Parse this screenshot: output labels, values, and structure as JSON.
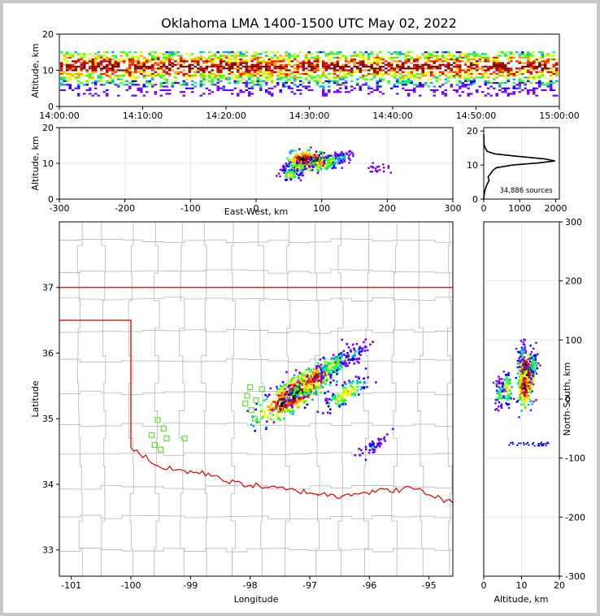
{
  "title": "Oklahoma LMA 1400-1500 UTC May 02, 2022",
  "colors": {
    "density": [
      "#7000ff",
      "#0000ff",
      "#00a0ff",
      "#00ff60",
      "#40ff00",
      "#c8ff00",
      "#ffff00",
      "#ffa000",
      "#ff2000",
      "#c00000",
      "#800000",
      "#000000",
      "#606060",
      "#c0c0c0",
      "#ffffff"
    ],
    "state_border": "#e00000",
    "county_lines": "#bdbdbd",
    "stations": "#66e033"
  },
  "chart_data": [
    {
      "name": "time_height",
      "type": "heatmap",
      "xlabel": "",
      "ylabel": "Altitude, km",
      "xlim": [
        "14:00:00",
        "15:00:00"
      ],
      "ylim": [
        0,
        20
      ],
      "xticks": [
        "14:00:00",
        "14:10:00",
        "14:20:00",
        "14:30:00",
        "14:40:00",
        "14:50:00",
        "15:00:00"
      ],
      "yticks": [
        "0",
        "10",
        "20"
      ],
      "source_band_km": [
        3,
        15
      ],
      "peak_altitude_km": 11
    },
    {
      "name": "ew_height",
      "type": "heatmap",
      "xlabel": "East-West, km",
      "ylabel": "Altitude, km",
      "xlim": [
        -300,
        300
      ],
      "ylim": [
        0,
        20
      ],
      "xticks": [
        "-300",
        "-200",
        "-100",
        "0",
        "100",
        "200",
        "300"
      ],
      "yticks": [
        "0",
        "10",
        "20"
      ],
      "cells": [
        {
          "x": 80,
          "y": 11,
          "level": 1.0
        },
        {
          "x": 90,
          "y": 11,
          "level": 0.9
        },
        {
          "x": 70,
          "y": 11.5,
          "level": 0.85
        },
        {
          "x": 100,
          "y": 10.5,
          "level": 0.6
        },
        {
          "x": 60,
          "y": 9,
          "level": 0.45
        },
        {
          "x": 50,
          "y": 7,
          "level": 0.45
        },
        {
          "x": 115,
          "y": 11,
          "level": 0.4
        },
        {
          "x": 130,
          "y": 12,
          "level": 0.25
        },
        {
          "x": 185,
          "y": 9,
          "level": 0.12
        }
      ]
    },
    {
      "name": "altitude_histogram",
      "type": "line",
      "xlim": [
        0,
        2100
      ],
      "ylim": [
        0,
        21
      ],
      "xticks": [
        "0",
        "1000",
        "2000"
      ],
      "yticks": [
        "0",
        "10",
        "20"
      ],
      "x": [
        0,
        20,
        60,
        100,
        150,
        120,
        260,
        350,
        800,
        1500,
        1980,
        1700,
        900,
        300,
        100,
        40,
        10,
        0
      ],
      "y": [
        0,
        2,
        3.5,
        4.5,
        5.5,
        6.5,
        8.5,
        9.2,
        10,
        10.6,
        11.2,
        11.8,
        12.6,
        13.3,
        14,
        15,
        16,
        19
      ],
      "annotation": "34,886 sources"
    },
    {
      "name": "plan_view",
      "type": "heatmap",
      "xlabel": "Longitude",
      "ylabel": "Latitude",
      "xlim": [
        -101.2,
        -94.6
      ],
      "ylim": [
        32.6,
        38.0
      ],
      "xticks": [
        "-101",
        "-100",
        "-99",
        "-98",
        "-97",
        "-96",
        "-95"
      ],
      "yticks": [
        "33",
        "34",
        "35",
        "36",
        "37"
      ],
      "cells": [
        {
          "lon": -97.1,
          "lat": 35.5,
          "level": 1.0
        },
        {
          "lon": -97.35,
          "lat": 35.35,
          "level": 0.95
        },
        {
          "lon": -96.9,
          "lat": 35.65,
          "level": 0.7
        },
        {
          "lon": -96.6,
          "lat": 35.85,
          "level": 0.4
        },
        {
          "lon": -96.4,
          "lat": 35.4,
          "level": 0.5
        },
        {
          "lon": -96.25,
          "lat": 36.0,
          "level": 0.2
        },
        {
          "lon": -95.95,
          "lat": 34.6,
          "level": 0.15
        }
      ],
      "stations": [
        {
          "lon": -99.55,
          "lat": 34.98
        },
        {
          "lon": -99.45,
          "lat": 34.85
        },
        {
          "lon": -99.65,
          "lat": 34.75
        },
        {
          "lon": -99.4,
          "lat": 34.7
        },
        {
          "lon": -99.6,
          "lat": 34.6
        },
        {
          "lon": -99.5,
          "lat": 34.53
        },
        {
          "lon": -99.1,
          "lat": 34.7
        },
        {
          "lon": -98.0,
          "lat": 35.48
        },
        {
          "lon": -98.05,
          "lat": 35.35
        },
        {
          "lon": -98.08,
          "lat": 35.23
        },
        {
          "lon": -97.9,
          "lat": 35.28
        },
        {
          "lon": -97.8,
          "lat": 35.45
        },
        {
          "lon": -97.98,
          "lat": 35.13
        },
        {
          "lon": -97.92,
          "lat": 35.0
        },
        {
          "lon": -97.5,
          "lat": 35.13
        }
      ]
    },
    {
      "name": "ns_height",
      "type": "heatmap",
      "xlabel": "Altitude, km",
      "ylabel": "North-South, km",
      "xlim": [
        0,
        20
      ],
      "ylim": [
        -300,
        300
      ],
      "xticks": [
        "0",
        "10",
        "20"
      ],
      "yticks": [
        "-300",
        "-200",
        "-100",
        "0",
        "100",
        "200",
        "300"
      ],
      "cells": [
        {
          "x": 11,
          "y": 35,
          "level": 1.0
        },
        {
          "x": 11,
          "y": 50,
          "level": 0.9
        },
        {
          "x": 10.5,
          "y": 20,
          "level": 0.8
        },
        {
          "x": 6,
          "y": 20,
          "level": 0.5
        },
        {
          "x": 4,
          "y": 10,
          "level": 0.35
        },
        {
          "x": 13,
          "y": 60,
          "level": 0.35
        },
        {
          "x": 10,
          "y": 80,
          "level": 0.25
        }
      ]
    }
  ]
}
